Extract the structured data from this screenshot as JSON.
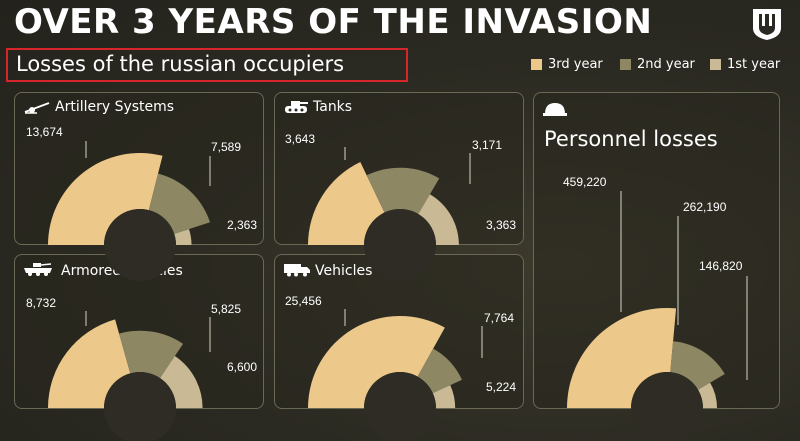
{
  "header": {
    "title": "OVER 3 YEARS OF THE INVASION",
    "subtitle": "Losses of the russian occupiers",
    "emblem_icon": "trident-icon"
  },
  "colors": {
    "year3": "#ecc98a",
    "year2": "#8d8763",
    "year1": "#c9b995",
    "hole": "#2e2c24",
    "highlight_box": "#d6262b"
  },
  "legend": [
    {
      "label": "3rd year",
      "color": "#ecc98a"
    },
    {
      "label": "2nd year",
      "color": "#8d8763"
    },
    {
      "label": "1st year",
      "color": "#c9b995"
    }
  ],
  "chart_data": [
    {
      "type": "pie",
      "title": "Artillery Systems",
      "icon": "artillery-icon",
      "categories": [
        "3rd year",
        "2nd year",
        "1st year"
      ],
      "values": [
        13674,
        7589,
        2363
      ],
      "labels": [
        "13,674",
        "7,589",
        "2,363"
      ]
    },
    {
      "type": "pie",
      "title": "Tanks",
      "icon": "tank-icon",
      "categories": [
        "3rd year",
        "2nd year",
        "1st year"
      ],
      "values": [
        3643,
        3171,
        3363
      ],
      "labels": [
        "3,643",
        "3,171",
        "3,363"
      ]
    },
    {
      "type": "pie",
      "title": "Armored vehicles",
      "icon": "armored-vehicle-icon",
      "categories": [
        "3rd year",
        "2nd year",
        "1st year"
      ],
      "values": [
        8732,
        5825,
        6600
      ],
      "labels": [
        "8,732",
        "5,825",
        "6,600"
      ]
    },
    {
      "type": "pie",
      "title": "Vehicles",
      "icon": "truck-icon",
      "categories": [
        "3rd year",
        "2nd year",
        "1st year"
      ],
      "values": [
        25456,
        7764,
        5224
      ],
      "labels": [
        "25,456",
        "7,764",
        "5,224"
      ]
    },
    {
      "type": "pie",
      "title": "Personnel losses",
      "icon": "helmet-icon",
      "categories": [
        "3rd year",
        "2nd year",
        "1st year"
      ],
      "values": [
        459220,
        262190,
        146820
      ],
      "labels": [
        "459,220",
        "262,190",
        "146,820"
      ]
    }
  ]
}
